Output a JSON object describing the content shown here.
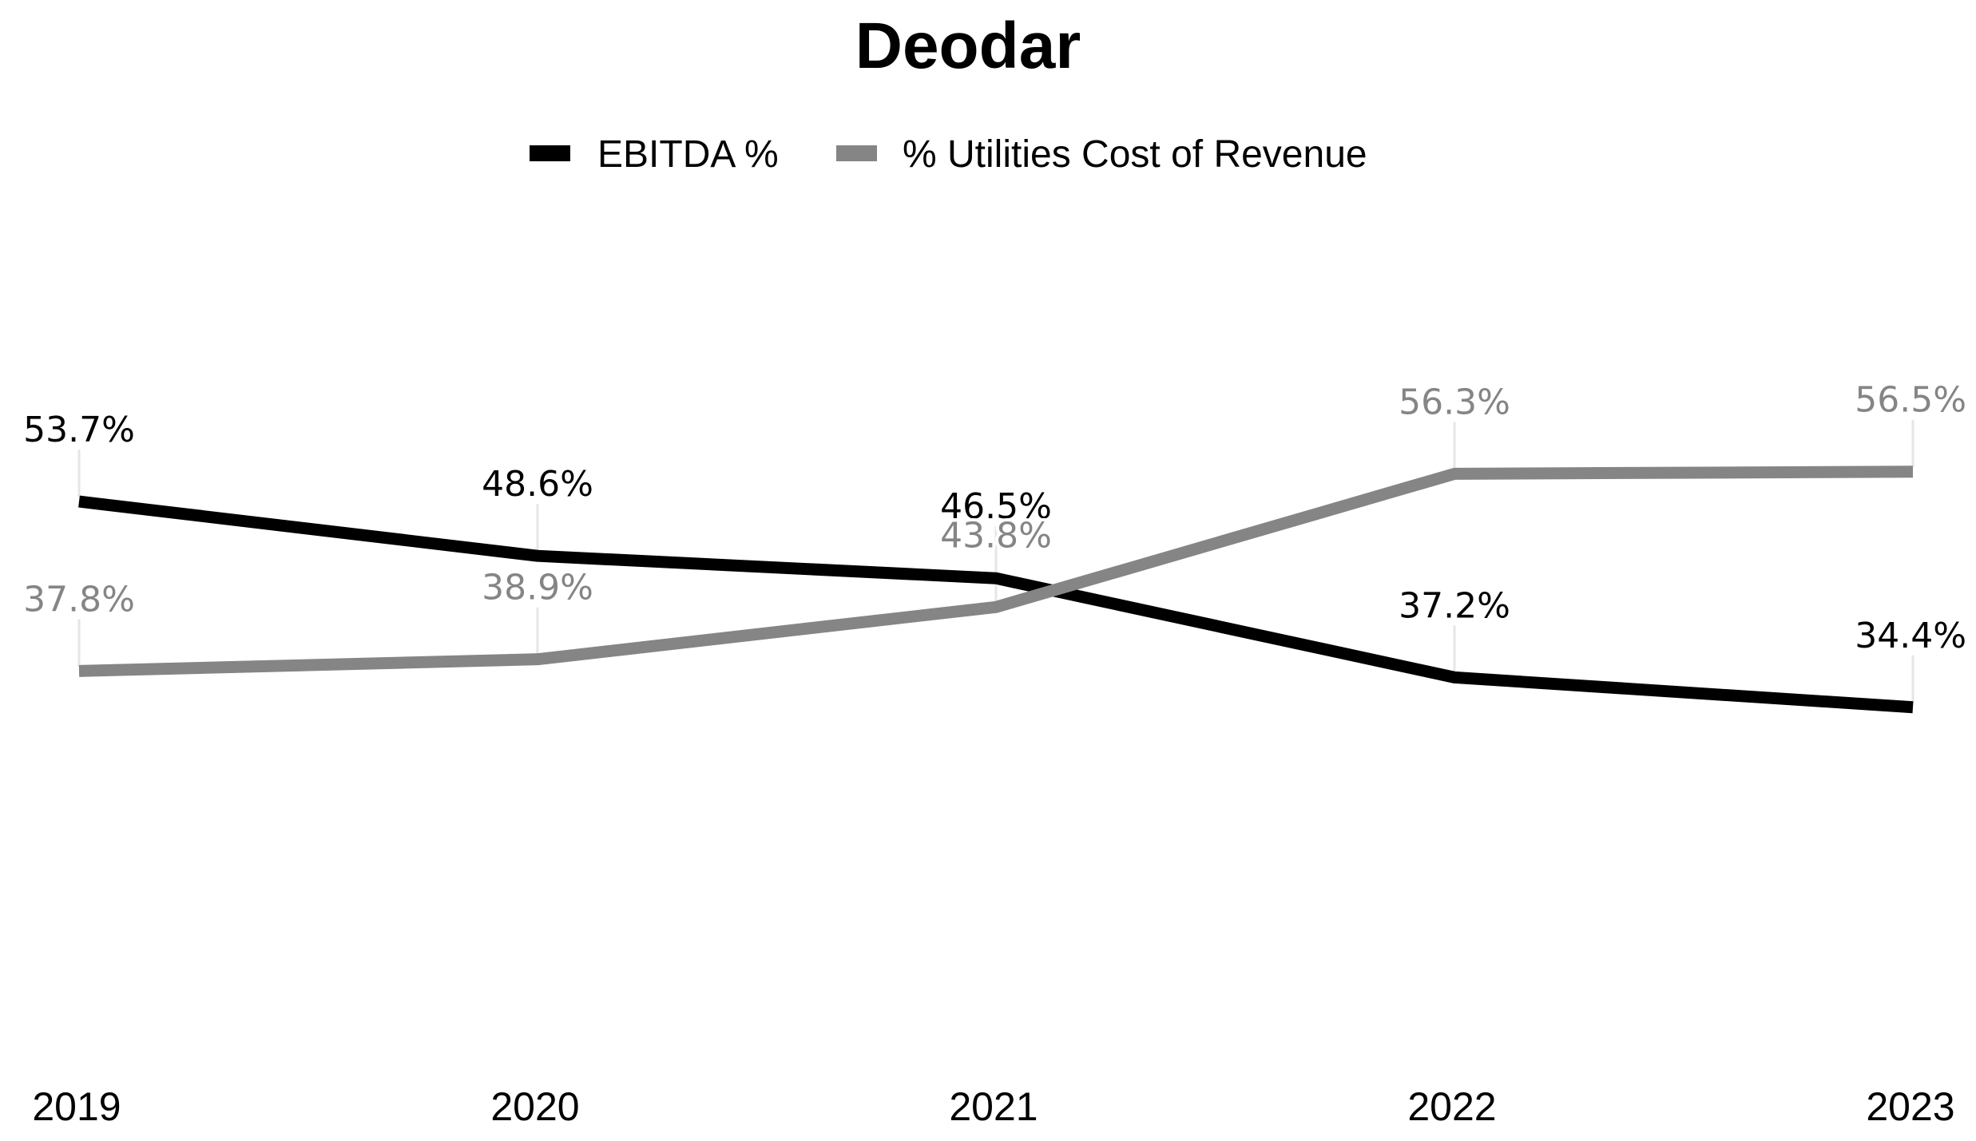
{
  "chart_data": {
    "type": "line",
    "title": "Deodar",
    "xlabel": "",
    "ylabel": "",
    "categories": [
      "2019",
      "2020",
      "2021",
      "2022",
      "2023"
    ],
    "series": [
      {
        "name": "EBITDA %",
        "color": "#000000",
        "values": [
          53.7,
          48.6,
          46.5,
          37.2,
          34.4
        ],
        "labels": [
          "53.7%",
          "48.6%",
          "46.5%",
          "37.2%",
          "34.4%"
        ]
      },
      {
        "name": "% Utilities Cost of Revenue",
        "color": "#858585",
        "values": [
          37.8,
          38.9,
          43.8,
          56.3,
          56.5
        ],
        "labels": [
          "37.8%",
          "38.9%",
          "43.8%",
          "56.3%",
          "56.5%"
        ]
      }
    ],
    "ylim": [
      0,
      100
    ],
    "grid": false,
    "legend_position": "top-center",
    "y_axis_visible": false
  }
}
